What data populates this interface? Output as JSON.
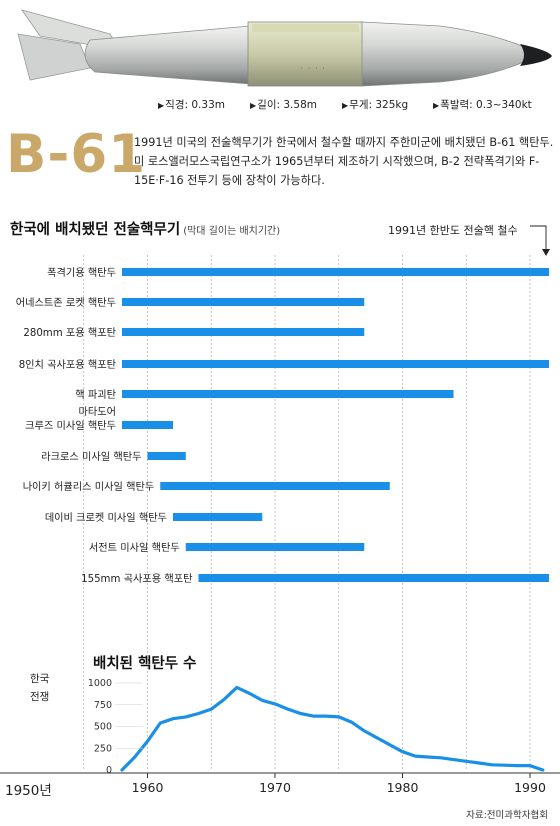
{
  "specs": [
    {
      "label": "직경",
      "value": "0.33m"
    },
    {
      "label": "길이",
      "value": "3.58m"
    },
    {
      "label": "무게",
      "value": "325kg"
    },
    {
      "label": "폭발력",
      "value": "0.3~340kt"
    }
  ],
  "big_title": "B-61",
  "description": "1991년 미국의 전술핵무기가 한국에서 철수할 때까지 주한미군에 배치됐던 B-61 핵탄두. 미 로스앨러모스국립연구소가 1965년부터 제조하기 시작했으며, B-2 전략폭격기와 F-15E·F-16 전투기 등에 장착이 가능하다.",
  "chart_title": "한국에 배치됐던 전술핵무기",
  "chart_subtitle": "(막대 길이는 배치기간)",
  "withdraw_note": "1991년 한반도 전술핵 철수",
  "war_label_1": "한국",
  "war_label_2": "전쟁",
  "count_title": "배치된 핵탄두 수",
  "x_start_label": "1950년",
  "source": "자료:전미과학자협회",
  "colors": {
    "bar": "#1a8fe8",
    "line": "#1a8fe8",
    "title_gold": "#c9a86a"
  },
  "chart_data": [
    {
      "type": "bar",
      "orientation": "horizontal",
      "title": "한국에 배치됐던 전술핵무기",
      "subtitle": "(막대 길이는 배치기간)",
      "x_range": [
        1950,
        1991
      ],
      "categories": [
        "폭격기용 핵탄두",
        "어네스트존 로켓 핵탄두",
        "280mm 포용 핵포탄",
        "8인치 곡사포용 핵포탄",
        "핵 파괴탄",
        "마타도어 크루즈 미사일 핵탄두",
        "라크로스 미사일 핵탄두",
        "나이키 허큘리스 미사일 핵탄두",
        "데이비 크로켓 미사일 핵탄두",
        "서전트 미사일 핵탄두",
        "155mm 곡사포용 핵포탄"
      ],
      "label_lines": [
        [
          "폭격기용 핵탄두"
        ],
        [
          "어네스트존 로켓 핵탄두"
        ],
        [
          "280mm 포용 핵포탄"
        ],
        [
          "8인치 곡사포용 핵포탄"
        ],
        [
          "핵 파괴탄"
        ],
        [
          "마타도어",
          "크루즈 미사일 핵탄두"
        ],
        [
          "라크로스 미사일 핵탄두"
        ],
        [
          "나이키 허큘리스 미사일 핵탄두"
        ],
        [
          "데이비 크로켓 미사일 핵탄두"
        ],
        [
          "서전트 미사일 핵탄두"
        ],
        [
          "155mm 곡사포용 핵포탄"
        ]
      ],
      "start": [
        1958,
        1958,
        1958,
        1958,
        1958,
        1958,
        1960,
        1961,
        1962,
        1963,
        1964
      ],
      "end": [
        1991,
        1977,
        1977,
        1991,
        1984,
        1962,
        1963,
        1979,
        1969,
        1977,
        1991
      ],
      "annotation": "1991년 한반도 전술핵 철수"
    },
    {
      "type": "area",
      "title": "배치된 핵탄두 수",
      "x": [
        1958,
        1959,
        1960,
        1961,
        1962,
        1963,
        1964,
        1965,
        1966,
        1967,
        1968,
        1969,
        1970,
        1971,
        1972,
        1973,
        1974,
        1975,
        1976,
        1977,
        1978,
        1979,
        1980,
        1981,
        1982,
        1983,
        1984,
        1985,
        1986,
        1987,
        1988,
        1989,
        1990,
        1991
      ],
      "y": [
        0,
        150,
        330,
        540,
        590,
        610,
        650,
        700,
        810,
        950,
        880,
        800,
        760,
        700,
        650,
        620,
        620,
        610,
        550,
        450,
        370,
        290,
        210,
        160,
        150,
        140,
        120,
        100,
        80,
        60,
        55,
        50,
        50,
        0
      ],
      "xticks": [
        1960,
        1970,
        1980,
        1990
      ],
      "yticks": [
        0,
        250,
        500,
        750,
        1000
      ],
      "xlim": [
        1950,
        1991
      ],
      "ylim": [
        0,
        1000
      ],
      "x_start_label": "1950년"
    }
  ]
}
